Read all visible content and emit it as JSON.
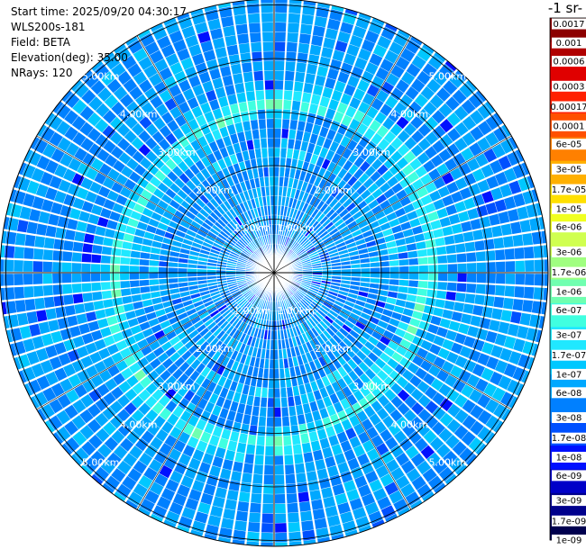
{
  "info": {
    "start_time": "Start time: 2025/09/20 04:30:17",
    "instrument": "WLS200s-181",
    "field": "Field: BETA",
    "elevation": "Elevation(deg): 35.00",
    "nrays": "NRays: 120"
  },
  "colorbar_title": "-1 sr-",
  "chart_data": {
    "type": "heatmap",
    "projection": "polar (PPI)",
    "nrays": 120,
    "range_rings": [
      {
        "label": "1.00km",
        "value_km": 1.0
      },
      {
        "label": "2.00km",
        "value_km": 2.0
      },
      {
        "label": "3.00km",
        "value_km": 3.0
      },
      {
        "label": "4.00km",
        "value_km": 4.0
      },
      {
        "label": "5.00km",
        "value_km": 5.0
      }
    ],
    "max_range_km": 5.9,
    "colorbar": {
      "scale": "log",
      "range": [
        1e-09,
        0.002
      ],
      "ticks": [
        "1e-09",
        "1.7e-09",
        "3e-09",
        "6e-09",
        "1e-08",
        "1.7e-08",
        "3e-08",
        "6e-08",
        "1e-07",
        "1.7e-07",
        "3e-07",
        "6e-07",
        "1e-06",
        "1.7e-06",
        "3e-06",
        "6e-06",
        "1e-05",
        "1.7e-05",
        "3e-05",
        "6e-05",
        "0.0001",
        "0.00017",
        "0.0003",
        "0.0006",
        "0.001",
        "0.0017"
      ],
      "colors": [
        "#00004f",
        "#00008c",
        "#0000c8",
        "#0010ff",
        "#0050ff",
        "#0080ff",
        "#00a8ff",
        "#00c8ff",
        "#20e8ff",
        "#40ffe0",
        "#70ffb0",
        "#a0ff80",
        "#d0ff50",
        "#f0ff20",
        "#ffe000",
        "#ffb000",
        "#ff8000",
        "#ff5000",
        "#ff2000",
        "#e00000",
        "#b00000",
        "#8c0000"
      ]
    },
    "dominant_values": [
      "3e-08",
      "6e-08"
    ],
    "ring_feature": {
      "description_value": "1.7e-07 to 6e-06",
      "range_km": [
        2.8,
        3.5
      ]
    }
  }
}
